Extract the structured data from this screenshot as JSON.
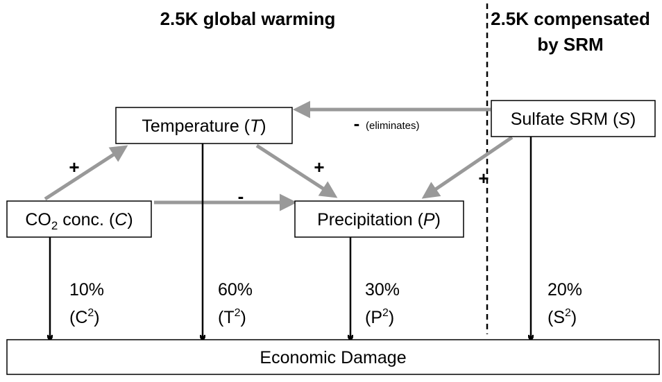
{
  "headers": {
    "left": "2.5K global warming",
    "right": [
      "2.5K compensated",
      "by SRM"
    ]
  },
  "nodes": {
    "temperature": [
      "Temperature (",
      "T",
      ")"
    ],
    "sulfate": [
      "Sulfate SRM (",
      "S",
      ")"
    ],
    "co2": [
      "CO",
      "2",
      " conc. (",
      "C",
      ")"
    ],
    "precipitation": [
      "Precipitation (",
      "P",
      ")"
    ],
    "damage": "Economic Damage"
  },
  "edges": {
    "co2_temperature": "+",
    "temperature_precipitation": "+",
    "co2_precipitation": "-",
    "sulfate_temperature": [
      "-",
      "(eliminates)"
    ],
    "sulfate_precipitation": "+"
  },
  "damage_shares": [
    {
      "share": "10%",
      "term": [
        "(C",
        "2",
        ")"
      ]
    },
    {
      "share": "60%",
      "term": [
        "(T",
        "2",
        ")"
      ]
    },
    {
      "share": "30%",
      "term": [
        "(P",
        "2",
        ")"
      ]
    },
    {
      "share": "20%",
      "term": [
        "(S",
        "2",
        ")"
      ]
    }
  ]
}
